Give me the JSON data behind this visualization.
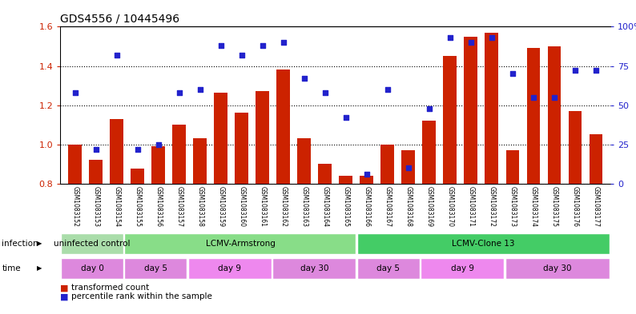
{
  "title": "GDS4556 / 10445496",
  "samples": [
    "GSM1083152",
    "GSM1083153",
    "GSM1083154",
    "GSM1083155",
    "GSM1083156",
    "GSM1083157",
    "GSM1083158",
    "GSM1083159",
    "GSM1083160",
    "GSM1083161",
    "GSM1083162",
    "GSM1083163",
    "GSM1083164",
    "GSM1083165",
    "GSM1083166",
    "GSM1083167",
    "GSM1083168",
    "GSM1083169",
    "GSM1083170",
    "GSM1083171",
    "GSM1083172",
    "GSM1083173",
    "GSM1083174",
    "GSM1083175",
    "GSM1083176",
    "GSM1083177"
  ],
  "bar_values": [
    1.0,
    0.92,
    1.13,
    0.875,
    0.99,
    1.1,
    1.03,
    1.265,
    1.16,
    1.27,
    1.38,
    1.03,
    0.9,
    0.84,
    0.84,
    1.0,
    0.97,
    1.12,
    1.45,
    1.55,
    1.57,
    0.97,
    1.49,
    1.5,
    1.17,
    1.05
  ],
  "dot_values_pct": [
    58,
    22,
    82,
    22,
    25,
    58,
    60,
    88,
    82,
    88,
    90,
    67,
    58,
    42,
    6,
    60,
    10,
    48,
    93,
    90,
    93,
    70,
    55,
    55,
    72,
    72
  ],
  "bar_color": "#cc2200",
  "dot_color": "#2222cc",
  "ylim_left": [
    0.8,
    1.6
  ],
  "ylim_right": [
    0,
    100
  ],
  "yticks_left": [
    0.8,
    1.0,
    1.2,
    1.4,
    1.6
  ],
  "yticks_right": [
    0,
    25,
    50,
    75,
    100
  ],
  "ytick_labels_right": [
    "0",
    "25",
    "50",
    "75",
    "100%"
  ],
  "infection_groups": [
    {
      "label": "uninfected control",
      "start": 0,
      "end": 3,
      "color": "#aaddaa"
    },
    {
      "label": "LCMV-Armstrong",
      "start": 3,
      "end": 14,
      "color": "#88dd88"
    },
    {
      "label": "LCMV-Clone 13",
      "start": 14,
      "end": 26,
      "color": "#44cc66"
    }
  ],
  "time_groups": [
    {
      "label": "day 0",
      "start": 0,
      "end": 3,
      "color": "#dd88dd"
    },
    {
      "label": "day 5",
      "start": 3,
      "end": 6,
      "color": "#dd88dd"
    },
    {
      "label": "day 9",
      "start": 6,
      "end": 10,
      "color": "#ee88ee"
    },
    {
      "label": "day 30",
      "start": 10,
      "end": 14,
      "color": "#dd88dd"
    },
    {
      "label": "day 5",
      "start": 14,
      "end": 17,
      "color": "#dd88dd"
    },
    {
      "label": "day 9",
      "start": 17,
      "end": 21,
      "color": "#ee88ee"
    },
    {
      "label": "day 30",
      "start": 21,
      "end": 26,
      "color": "#dd88dd"
    }
  ],
  "legend_bar_label": "transformed count",
  "legend_dot_label": "percentile rank within the sample",
  "infection_row_label": "infection",
  "time_row_label": "time",
  "bg_color": "#ffffff"
}
